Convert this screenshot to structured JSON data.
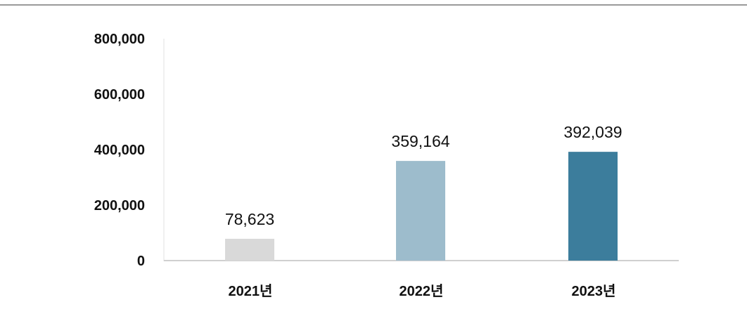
{
  "chart_data": {
    "type": "bar",
    "title": "",
    "xlabel": "",
    "ylabel": "",
    "categories": [
      "2021년",
      "2022년",
      "2023년"
    ],
    "values": [
      78623,
      359164,
      392039
    ],
    "value_labels": [
      "78,623",
      "359,164",
      "392,039"
    ],
    "ylim": [
      0,
      800000
    ],
    "yticks": [
      0,
      200000,
      400000,
      600000,
      800000
    ],
    "ytick_labels": [
      "0",
      "200,000",
      "400,000",
      "600,000",
      "800,000"
    ],
    "bar_colors": [
      "#d9d9d9",
      "#9dbccc",
      "#3c7d9c"
    ],
    "grid": false,
    "legend": "none"
  }
}
